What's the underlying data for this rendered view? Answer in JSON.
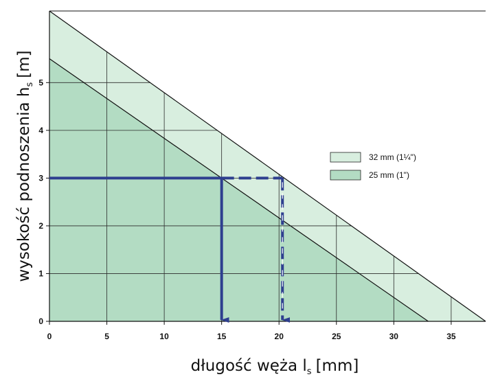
{
  "chart_data": {
    "type": "area",
    "xlabel": "długość węża l",
    "xlabel_subscript": "s",
    "xlabel_unit": "[mm]",
    "ylabel": "wysokość podnoszenia h",
    "ylabel_subscript": "s",
    "ylabel_unit": "[m]",
    "xlim": [
      0,
      38
    ],
    "ylim": [
      0,
      6.5
    ],
    "x_ticks": [
      0,
      5,
      10,
      15,
      20,
      25,
      30,
      35
    ],
    "y_ticks": [
      0,
      1,
      2,
      3,
      4,
      5
    ],
    "grid": true,
    "legend_position": "right",
    "series": [
      {
        "name": "32 mm (1¼\")",
        "x": [
          0,
          38
        ],
        "y": [
          6.5,
          0
        ],
        "color": "#d8eedf"
      },
      {
        "name": "25 mm (1\")",
        "x": [
          0,
          33
        ],
        "y": [
          5.5,
          0
        ],
        "color": "#b3dcc3"
      }
    ],
    "annotations": [
      {
        "style": "solid",
        "color": "#2e3f8f",
        "from": [
          0,
          3
        ],
        "to": [
          15,
          3
        ],
        "then_down_to": [
          15,
          0
        ]
      },
      {
        "style": "dashed",
        "color": "#2e3f8f",
        "from": [
          15,
          3
        ],
        "to": [
          20.3,
          3
        ],
        "then_down_to": [
          20.3,
          0
        ]
      }
    ]
  }
}
